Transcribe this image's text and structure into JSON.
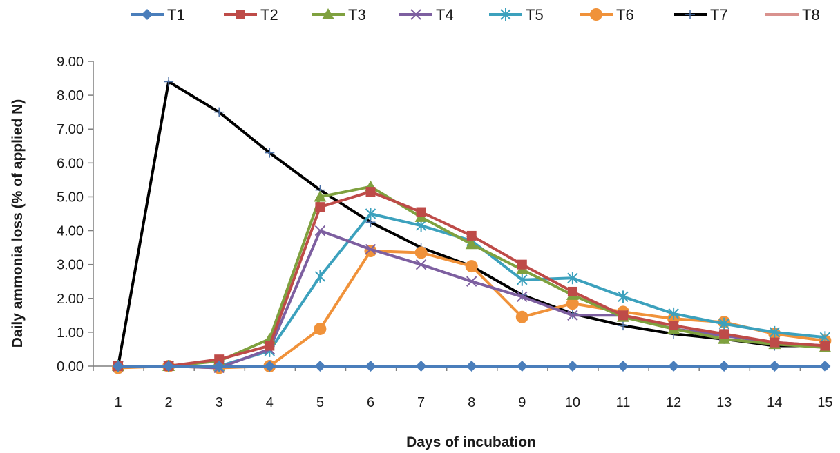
{
  "chart_data": {
    "type": "line",
    "title": "",
    "xlabel": "Days of incubation",
    "ylabel": "Daily ammonia loss (% of applied N)",
    "x": [
      1,
      2,
      3,
      4,
      5,
      6,
      7,
      8,
      9,
      10,
      11,
      12,
      13,
      14,
      15
    ],
    "ylim": [
      0,
      9
    ],
    "yticks": [
      "0.00",
      "1.00",
      "2.00",
      "3.00",
      "4.00",
      "5.00",
      "6.00",
      "7.00",
      "8.00",
      "9.00"
    ],
    "grid": false,
    "legend": "top",
    "series": [
      {
        "name": "T1",
        "color": "#4a7ebb",
        "marker": "diamond",
        "values": [
          0,
          0,
          0,
          0,
          0,
          0,
          0,
          0,
          0,
          0,
          0,
          0,
          0,
          0,
          0
        ]
      },
      {
        "name": "T2",
        "color": "#be4b48",
        "marker": "square",
        "values": [
          0,
          0,
          0.2,
          0.6,
          4.7,
          5.15,
          4.55,
          3.85,
          3.0,
          2.2,
          1.5,
          1.2,
          0.95,
          0.7,
          0.6
        ]
      },
      {
        "name": "T3",
        "color": "#7fa13f",
        "marker": "triangle",
        "values": [
          0,
          0,
          0.15,
          0.8,
          5.0,
          5.3,
          4.4,
          3.6,
          2.85,
          2.1,
          1.45,
          1.1,
          0.8,
          0.65,
          0.55
        ]
      },
      {
        "name": "T4",
        "color": "#7d5fa0",
        "marker": "x",
        "values": [
          0,
          0,
          -0.05,
          0.5,
          4.0,
          3.45,
          3.0,
          2.5,
          2.05,
          1.5,
          1.5,
          1.1,
          0.9,
          0.7,
          0.6
        ]
      },
      {
        "name": "T5",
        "color": "#3ca1bd",
        "marker": "asterisk",
        "values": [
          0,
          0,
          0,
          0.45,
          2.65,
          4.5,
          4.15,
          3.7,
          2.55,
          2.6,
          2.05,
          1.55,
          1.25,
          1.0,
          0.85
        ]
      },
      {
        "name": "T6",
        "color": "#f0923a",
        "marker": "circle",
        "values": [
          -0.05,
          0,
          -0.05,
          0,
          1.1,
          3.4,
          3.35,
          2.95,
          1.45,
          1.85,
          1.6,
          1.4,
          1.3,
          0.95,
          0.75
        ]
      },
      {
        "name": "T7",
        "color": "#000000",
        "marker": "plus",
        "values": [
          0,
          8.4,
          7.5,
          6.3,
          5.2,
          4.25,
          3.5,
          2.95,
          2.1,
          1.55,
          1.2,
          0.95,
          0.8,
          0.6,
          0.6
        ]
      },
      {
        "name": "T8",
        "color": "#d9928e",
        "marker": "none",
        "values": [
          0,
          0,
          0,
          0,
          0,
          0,
          0,
          0,
          0,
          0,
          0,
          0,
          0,
          0,
          0
        ]
      }
    ]
  }
}
